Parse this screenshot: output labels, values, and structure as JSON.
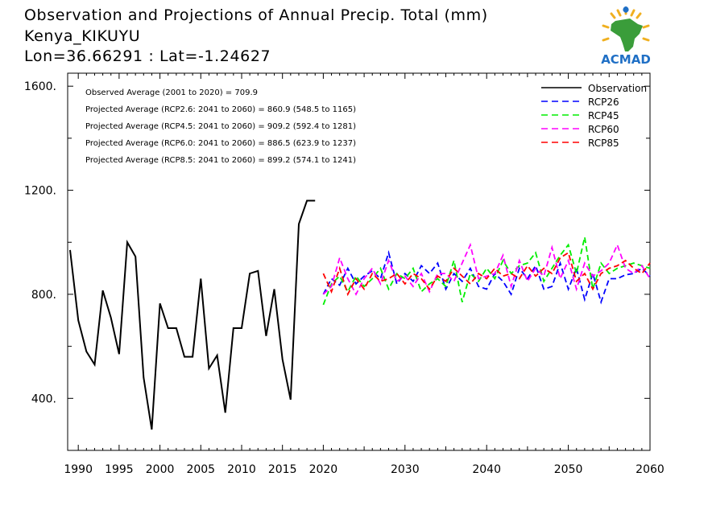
{
  "header": {
    "title_line1": "Observation and Projections of Annual Precip. Total (mm)",
    "title_line2": "Kenya_KIKUYU",
    "title_line3": "Lon=36.66291 : Lat=-1.24627"
  },
  "logo": {
    "text": "ACMAD",
    "colors": {
      "africa": "#3a9d3a",
      "sun": "#f0b020",
      "drop": "#1f6fc5",
      "text": "#1f6fc5"
    }
  },
  "annotations": [
    "Observed Average (2001 to 2020) = 709.9",
    "Projected Average (RCP2.6: 2041 to 2060) = 860.9 (548.5 to 1165)",
    "Projected Average (RCP4.5: 2041 to 2060) = 909.2 (592.4 to 1281)",
    "Projected Average (RCP6.0: 2041 to 2060) = 886.5 (623.9 to 1237)",
    "Projected Average (RCP8.5: 2041 to 2060) = 899.2 (574.1 to 1241)"
  ],
  "chart_data": {
    "type": "line",
    "title": "Observation and Projections of Annual Precip. Total (mm)",
    "xlabel": "",
    "ylabel": "",
    "xlim": [
      1990,
      2060
    ],
    "ylim": [
      200,
      1650
    ],
    "grid": false,
    "legend_position": "top-right",
    "y_ticks": [
      400,
      800,
      1200,
      1600
    ],
    "y_tick_labels": [
      "400.",
      "800.",
      "1200.",
      "1600."
    ],
    "x_ticks": [
      1990,
      1995,
      2000,
      2005,
      2010,
      2015,
      2020,
      2030,
      2040,
      2050,
      2060
    ],
    "x_tick_labels": [
      "1990",
      "1995",
      "2000",
      "2005",
      "2010",
      "2015",
      "2020",
      "2030",
      "2040",
      "2050",
      "2060"
    ],
    "series": [
      {
        "name": "Observation",
        "color": "#000000",
        "dash": "solid",
        "x": [
          1989,
          1990,
          1991,
          1992,
          1993,
          1994,
          1995,
          1996,
          1997,
          1998,
          1999,
          2000,
          2001,
          2002,
          2003,
          2004,
          2005,
          2006,
          2007,
          2008,
          2009,
          2010,
          2011,
          2012,
          2013,
          2014,
          2015,
          2016,
          2017,
          2018,
          2019
        ],
        "values": [
          970,
          700,
          580,
          530,
          815,
          710,
          570,
          1000,
          945,
          480,
          280,
          765,
          670,
          670,
          560,
          560,
          860,
          515,
          565,
          345,
          670,
          670,
          880,
          890,
          640,
          820,
          550,
          395,
          1070,
          1160,
          1160
        ]
      },
      {
        "name": "RCP26",
        "color": "#0000ff",
        "dash": "dashed",
        "x": [
          2020,
          2021,
          2022,
          2023,
          2024,
          2025,
          2026,
          2027,
          2028,
          2029,
          2030,
          2031,
          2032,
          2033,
          2034,
          2035,
          2036,
          2037,
          2038,
          2039,
          2040,
          2041,
          2042,
          2043,
          2044,
          2045,
          2046,
          2047,
          2048,
          2049,
          2050,
          2051,
          2052,
          2053,
          2054,
          2055,
          2056,
          2057,
          2058,
          2059,
          2060
        ],
        "values": [
          800,
          860,
          835,
          900,
          840,
          870,
          890,
          860,
          960,
          840,
          880,
          850,
          910,
          880,
          920,
          820,
          880,
          850,
          900,
          830,
          820,
          880,
          850,
          800,
          900,
          860,
          910,
          820,
          830,
          920,
          820,
          900,
          780,
          880,
          770,
          860,
          860,
          875,
          880,
          900,
          870
        ]
      },
      {
        "name": "RCP45",
        "color": "#00ee00",
        "dash": "dashed",
        "x": [
          2020,
          2021,
          2022,
          2023,
          2024,
          2025,
          2026,
          2027,
          2028,
          2029,
          2030,
          2031,
          2032,
          2033,
          2034,
          2035,
          2036,
          2037,
          2038,
          2039,
          2040,
          2041,
          2042,
          2043,
          2044,
          2045,
          2046,
          2047,
          2048,
          2049,
          2050,
          2051,
          2052,
          2053,
          2054,
          2055,
          2056,
          2057,
          2058,
          2059,
          2060
        ],
        "values": [
          760,
          840,
          870,
          810,
          870,
          830,
          860,
          900,
          820,
          880,
          860,
          900,
          810,
          840,
          860,
          830,
          930,
          770,
          880,
          850,
          900,
          860,
          930,
          880,
          910,
          920,
          960,
          850,
          900,
          950,
          990,
          880,
          1020,
          820,
          920,
          880,
          900,
          910,
          920,
          910,
          900
        ]
      },
      {
        "name": "RCP60",
        "color": "#ff00ff",
        "dash": "dashed",
        "x": [
          2020,
          2021,
          2022,
          2023,
          2024,
          2025,
          2026,
          2027,
          2028,
          2029,
          2030,
          2031,
          2032,
          2033,
          2034,
          2035,
          2036,
          2037,
          2038,
          2039,
          2040,
          2041,
          2042,
          2043,
          2044,
          2045,
          2046,
          2047,
          2048,
          2049,
          2050,
          2051,
          2052,
          2053,
          2054,
          2055,
          2056,
          2057,
          2058,
          2059,
          2060
        ],
        "values": [
          800,
          830,
          940,
          860,
          800,
          860,
          900,
          840,
          930,
          850,
          870,
          830,
          880,
          810,
          880,
          880,
          850,
          920,
          990,
          860,
          870,
          880,
          950,
          830,
          930,
          850,
          900,
          870,
          980,
          860,
          930,
          820,
          920,
          870,
          890,
          920,
          990,
          900,
          880,
          910,
          860
        ]
      },
      {
        "name": "RCP85",
        "color": "#ff0000",
        "dash": "dashed",
        "x": [
          2020,
          2021,
          2022,
          2023,
          2024,
          2025,
          2026,
          2027,
          2028,
          2029,
          2030,
          2031,
          2032,
          2033,
          2034,
          2035,
          2036,
          2037,
          2038,
          2039,
          2040,
          2041,
          2042,
          2043,
          2044,
          2045,
          2046,
          2047,
          2048,
          2049,
          2050,
          2051,
          2052,
          2053,
          2054,
          2055,
          2056,
          2057,
          2058,
          2059,
          2060
        ],
        "values": [
          880,
          810,
          900,
          800,
          860,
          820,
          880,
          850,
          860,
          880,
          840,
          880,
          860,
          820,
          870,
          850,
          900,
          870,
          840,
          880,
          860,
          900,
          870,
          880,
          860,
          910,
          870,
          900,
          880,
          940,
          960,
          850,
          880,
          820,
          880,
          900,
          910,
          930,
          900,
          880,
          920
        ]
      }
    ]
  }
}
